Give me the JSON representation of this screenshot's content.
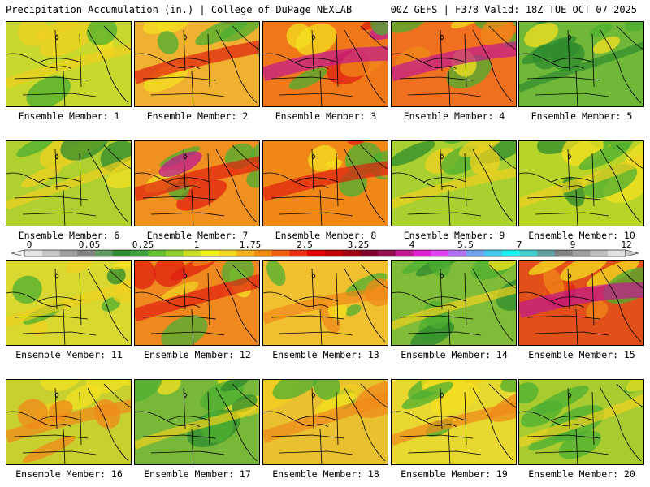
{
  "header": {
    "title": "Precipitation Accumulation (in.) | College of DuPage NEXLAB",
    "run_info": "00Z GEFS | F378 Valid: 18Z TUE OCT 07 2025"
  },
  "members": [
    {
      "label": "Ensemble Member: 1",
      "base": "#c8d82c",
      "wet": 0.45
    },
    {
      "label": "Ensemble Member: 2",
      "base": "#f0b030",
      "wet": 0.7
    },
    {
      "label": "Ensemble Member: 3",
      "base": "#f07818",
      "wet": 0.85
    },
    {
      "label": "Ensemble Member: 4",
      "base": "#f07020",
      "wet": 0.85
    },
    {
      "label": "Ensemble Member: 5",
      "base": "#70b838",
      "wet": 0.25
    },
    {
      "label": "Ensemble Member: 6",
      "base": "#b0d030",
      "wet": 0.35
    },
    {
      "label": "Ensemble Member: 7",
      "base": "#f09020",
      "wet": 0.8
    },
    {
      "label": "Ensemble Member: 8",
      "base": "#f08818",
      "wet": 0.8
    },
    {
      "label": "Ensemble Member: 9",
      "base": "#a8d030",
      "wet": 0.4
    },
    {
      "label": "Ensemble Member: 10",
      "base": "#b8d428",
      "wet": 0.45
    },
    {
      "label": "Ensemble Member: 11",
      "base": "#d8d830",
      "wet": 0.45
    },
    {
      "label": "Ensemble Member: 12",
      "base": "#f08820",
      "wet": 0.75
    },
    {
      "label": "Ensemble Member: 13",
      "base": "#f0c030",
      "wet": 0.6
    },
    {
      "label": "Ensemble Member: 14",
      "base": "#80bc38",
      "wet": 0.3
    },
    {
      "label": "Ensemble Member: 15",
      "base": "#e05018",
      "wet": 0.95
    },
    {
      "label": "Ensemble Member: 16",
      "base": "#c8d030",
      "wet": 0.65
    },
    {
      "label": "Ensemble Member: 17",
      "base": "#78b838",
      "wet": 0.3
    },
    {
      "label": "Ensemble Member: 18",
      "base": "#e8c030",
      "wet": 0.65
    },
    {
      "label": "Ensemble Member: 19",
      "base": "#e8d830",
      "wet": 0.5
    },
    {
      "label": "Ensemble Member: 20",
      "base": "#a8cc30",
      "wet": 0.4
    }
  ],
  "legend": {
    "tick_labels": [
      "0",
      "0.05",
      "0.25",
      "1",
      "1.75",
      "2.5",
      "3.25",
      "4",
      "5.5",
      "7",
      "9",
      "12"
    ],
    "colors": [
      "#e4e4e4",
      "#c8c8c8",
      "#a0a0a0",
      "#808080",
      "#609860",
      "#2e8b2e",
      "#3ca03c",
      "#66c030",
      "#90d028",
      "#c8e020",
      "#f0f020",
      "#f4d820",
      "#f4b018",
      "#f48c10",
      "#f06010",
      "#e83010",
      "#e00000",
      "#c00000",
      "#a00010",
      "#800028",
      "#901050",
      "#c01890",
      "#e020d0",
      "#e040f0",
      "#b070f0",
      "#70a0f0",
      "#40c8f0",
      "#20f0f0",
      "#40d0d0",
      "#60a0a0",
      "#808080",
      "#a0a0a0",
      "#c0c0c0",
      "#e0e0e0"
    ]
  }
}
